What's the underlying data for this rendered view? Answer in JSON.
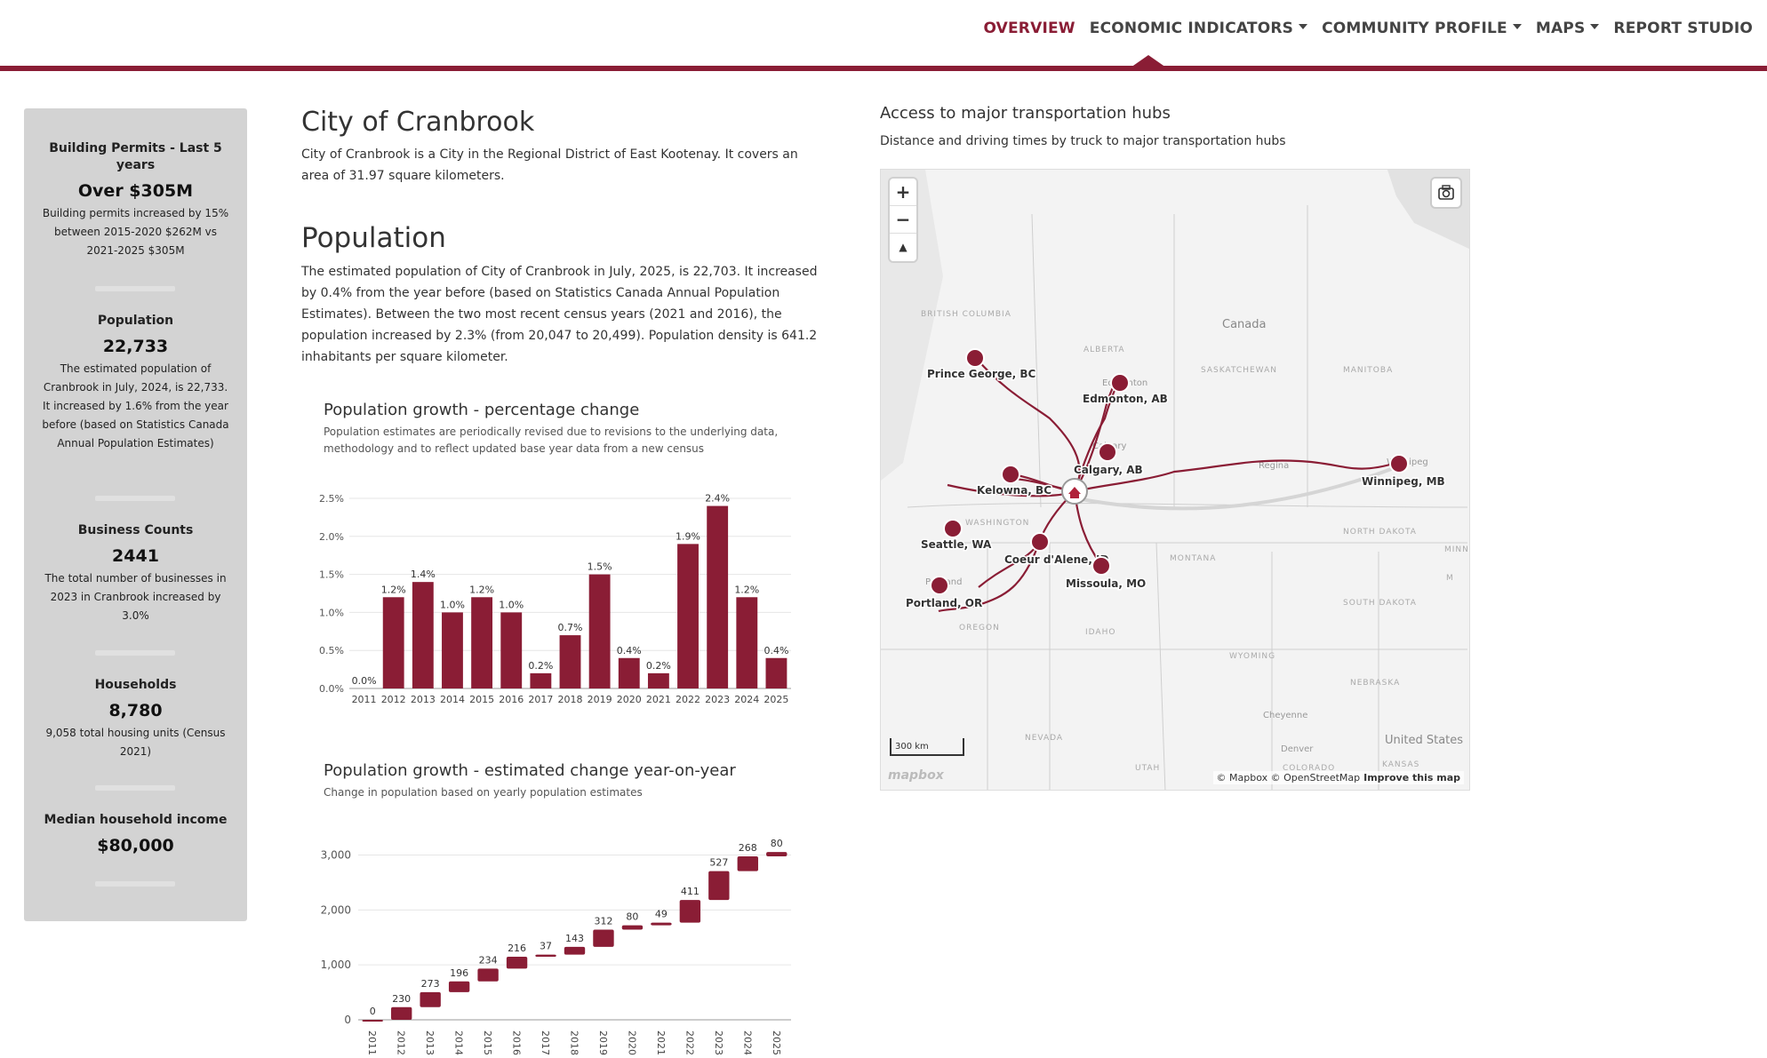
{
  "nav": {
    "items": [
      {
        "label": "OVERVIEW",
        "active": true,
        "dropdown": false
      },
      {
        "label": "ECONOMIC INDICATORS",
        "active": false,
        "dropdown": true
      },
      {
        "label": "COMMUNITY PROFILE",
        "active": false,
        "dropdown": true
      },
      {
        "label": "MAPS",
        "active": false,
        "dropdown": true
      },
      {
        "label": "REPORT STUDIO",
        "active": false,
        "dropdown": false
      }
    ]
  },
  "colors": {
    "brand": "#8a1d35",
    "sidebar": "#d3d3d3"
  },
  "sidebar": {
    "stats": [
      {
        "title": "Building Permits - Last 5 years",
        "value": "Over $305M",
        "desc": "Building permits increased by 15% between 2015-2020 $262M vs 2021-2025 $305M"
      },
      {
        "title": "Population",
        "value": "22,733",
        "desc": "The estimated population of Cranbrook in July, 2024, is 22,733. It increased by 1.6% from the year before (based on Statistics Canada Annual Population Estimates)"
      },
      {
        "title": "Business Counts",
        "value": "2441",
        "desc": "The total number of businesses in 2023 in Cranbrook increased by 3.0%"
      },
      {
        "title": "Households",
        "value": "8,780",
        "desc": "9,058 total housing units (Census 2021)"
      },
      {
        "title": "Median household income",
        "value": "$80,000",
        "desc": ""
      }
    ]
  },
  "main": {
    "city_title": "City of Cranbrook",
    "city_desc": "City of Cranbrook is a City in the Regional District of East Kootenay. It covers an area of 31.97 square kilometers.",
    "pop_title": "Population",
    "pop_desc": "The estimated population of City of Cranbrook in July, 2025, is 22,703. It increased by 0.4% from the year before (based on Statistics Canada Annual Population Estimates). Between the two most recent census years (2021 and 2016), the population increased by 2.3% (from 20,047 to 20,499). Population density is 641.2 inhabitants per square kilometer."
  },
  "chart_data": [
    {
      "type": "bar",
      "title": "Population growth - percentage change",
      "subtitle": "Population estimates are periodically revised due to revisions to the underlying data, methodology and to reflect updated base year data from a new census",
      "categories": [
        "2011",
        "2012",
        "2013",
        "2014",
        "2015",
        "2016",
        "2017",
        "2018",
        "2019",
        "2020",
        "2021",
        "2022",
        "2023",
        "2024",
        "2025"
      ],
      "values": [
        0.0,
        1.2,
        1.4,
        1.0,
        1.2,
        1.0,
        0.2,
        0.7,
        1.5,
        0.4,
        0.2,
        1.9,
        2.4,
        1.2,
        0.4
      ],
      "data_labels": [
        "0.0%",
        "1.2%",
        "1.4%",
        "1.0%",
        "1.2%",
        "1.0%",
        "0.2%",
        "0.7%",
        "1.5%",
        "0.4%",
        "0.2%",
        "1.9%",
        "2.4%",
        "1.2%",
        "0.4%"
      ],
      "yticks": [
        "0.0%",
        "0.5%",
        "1.0%",
        "1.5%",
        "2.0%",
        "2.5%"
      ],
      "ylim": [
        0,
        2.5
      ],
      "color": "#8a1d35",
      "grid": true
    },
    {
      "type": "bar",
      "subtype": "waterfall",
      "title": "Population growth - estimated change year-on-year",
      "subtitle": "Change in population based on yearly population estimates",
      "categories": [
        "2011",
        "2012",
        "2013",
        "2014",
        "2015",
        "2016",
        "2017",
        "2018",
        "2019",
        "2020",
        "2021",
        "2022",
        "2023",
        "2024",
        "2025"
      ],
      "values": [
        0,
        230,
        273,
        196,
        234,
        216,
        37,
        143,
        312,
        80,
        49,
        411,
        527,
        268,
        80
      ],
      "yticks": [
        "0",
        "1,000",
        "2,000",
        "3,000"
      ],
      "ylim": [
        0,
        3300
      ],
      "color": "#8a1d35",
      "grid": true
    }
  ],
  "map": {
    "title": "Access to major transportation hubs",
    "subtitle": "Distance and driving times by truck to major transportation hubs",
    "scale_label": "300 km",
    "logo": "mapbox",
    "attribution": "© Mapbox © OpenStreetMap",
    "improve": "Improve this map",
    "zoom_in": "+",
    "zoom_out": "−",
    "compass": "▲",
    "country_labels": [
      "Canada",
      "United States"
    ],
    "region_labels": [
      "BRITISH COLUMBIA",
      "ALBERTA",
      "SASKATCHEWAN",
      "MANITOBA",
      "WASHINGTON",
      "MONTANA",
      "NORTH DAKOTA",
      "SOUTH DAKOTA",
      "OREGON",
      "IDAHO",
      "WYOMING",
      "NEBRASKA",
      "NEVADA",
      "UTAH",
      "COLORADO",
      "KANSAS",
      "MINNE",
      "M"
    ],
    "cities": [
      "Cheyenne",
      "Denver",
      "Regina",
      "Edmonton",
      "Calgary",
      "Winnipeg",
      "Portland"
    ],
    "hubs": [
      "Prince George, BC",
      "Edmonton, AB",
      "Calgary, AB",
      "Kelowna, BC",
      "Winnipeg, MB",
      "Seattle, WA",
      "Coeur d'Alene, ID",
      "Missoula, MO",
      "Portland, OR"
    ]
  }
}
